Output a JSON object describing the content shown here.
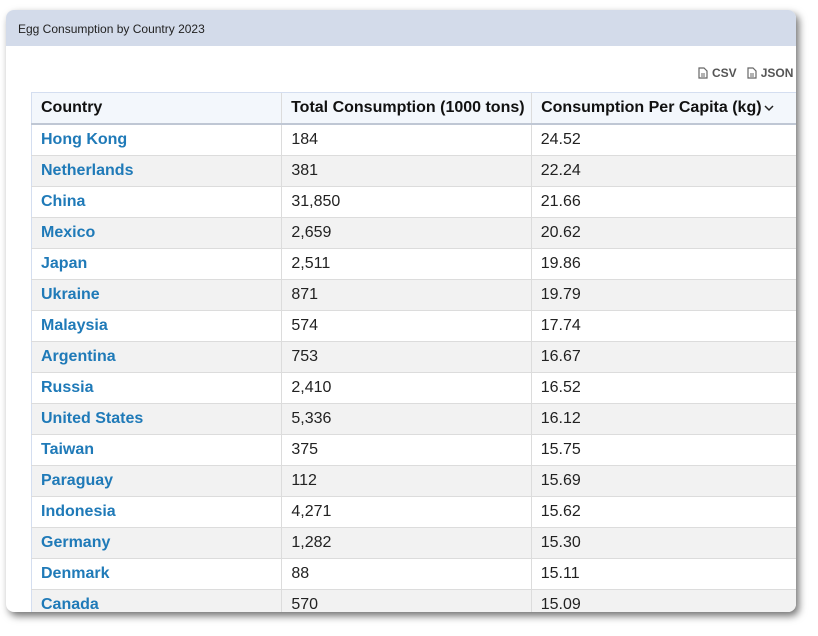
{
  "header": {
    "title": "Egg Consumption by Country 2023"
  },
  "exports": [
    "CSV",
    "JSON"
  ],
  "table": {
    "columns": [
      "Country",
      "Total Consumption (1000 tons)",
      "Consumption Per Capita (kg)"
    ],
    "rows": [
      [
        "Hong Kong",
        "184",
        "24.52"
      ],
      [
        "Netherlands",
        "381",
        "22.24"
      ],
      [
        "China",
        "31,850",
        "21.66"
      ],
      [
        "Mexico",
        "2,659",
        "20.62"
      ],
      [
        "Japan",
        "2,511",
        "19.86"
      ],
      [
        "Ukraine",
        "871",
        "19.79"
      ],
      [
        "Malaysia",
        "574",
        "17.74"
      ],
      [
        "Argentina",
        "753",
        "16.67"
      ],
      [
        "Russia",
        "2,410",
        "16.52"
      ],
      [
        "United States",
        "5,336",
        "16.12"
      ],
      [
        "Taiwan",
        "375",
        "15.75"
      ],
      [
        "Paraguay",
        "112",
        "15.69"
      ],
      [
        "Indonesia",
        "4,271",
        "15.62"
      ],
      [
        "Germany",
        "1,282",
        "15.30"
      ],
      [
        "Denmark",
        "88",
        "15.11"
      ],
      [
        "Canada",
        "570",
        "15.09"
      ]
    ]
  }
}
